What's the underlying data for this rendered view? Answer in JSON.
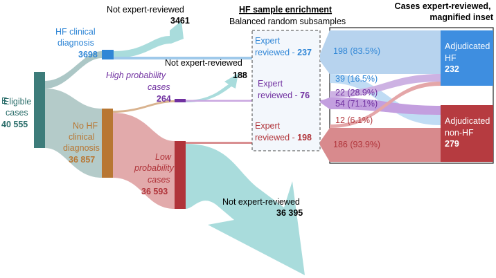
{
  "colors": {
    "eligible": "#3d7c7a",
    "no_hf": "#b87733",
    "hf_clinical": "#2f86d6",
    "high_prob": "#7030a0",
    "low_prob": "#b0343a",
    "not_reviewed_flow": "#a9dcdc",
    "teal_flow": "#9bbcbb",
    "adjudicated_hf": "#3e8ee0",
    "adjudicated_nonhf": "#b63b40"
  },
  "nodes": {
    "eligible": {
      "label": "Eligible cases",
      "value": "40 555"
    },
    "hf_clinical": {
      "label": "HF clinical diagnosis",
      "value": "3698"
    },
    "no_hf": {
      "label": "No HF clinical diagnosis",
      "value": "36 857"
    },
    "high_prob": {
      "label": "High probability cases",
      "value": "264"
    },
    "low_prob": {
      "label": "Low probability cases",
      "value": "36 593"
    }
  },
  "not_reviewed": {
    "hf": {
      "label": "Not expert-reviewed",
      "value": "3461"
    },
    "high": {
      "label": "Not expert-reviewed",
      "value": "188"
    },
    "low": {
      "label": "Not expert-reviewed",
      "value": "36 395"
    }
  },
  "enrichment": {
    "title": "HF sample enrichment",
    "subtitle": "Balanced random subsamples",
    "hf": {
      "label": "Expert reviewed - ",
      "value": "237"
    },
    "high": {
      "label": "Expert reviewed - ",
      "value": "76"
    },
    "low": {
      "label": "Expert reviewed - ",
      "value": "198"
    }
  },
  "inset": {
    "title": "Cases expert-reviewed, magnified inset",
    "flows": {
      "hf_to_hf": "198 (83.5%)",
      "hf_to_nonhf": "39 (16.5%)",
      "high_to_hf": "22 (28.9%)",
      "high_to_nonhf": "54 (71.1%)",
      "low_to_hf": "12 (6.1%)",
      "low_to_nonhf": "186 (93.9%)"
    },
    "adjudicated_hf": {
      "label": "Adjudicated HF",
      "value": "232"
    },
    "adjudicated_nonhf": {
      "label": "Adjudicated non-HF",
      "value": "279"
    }
  }
}
